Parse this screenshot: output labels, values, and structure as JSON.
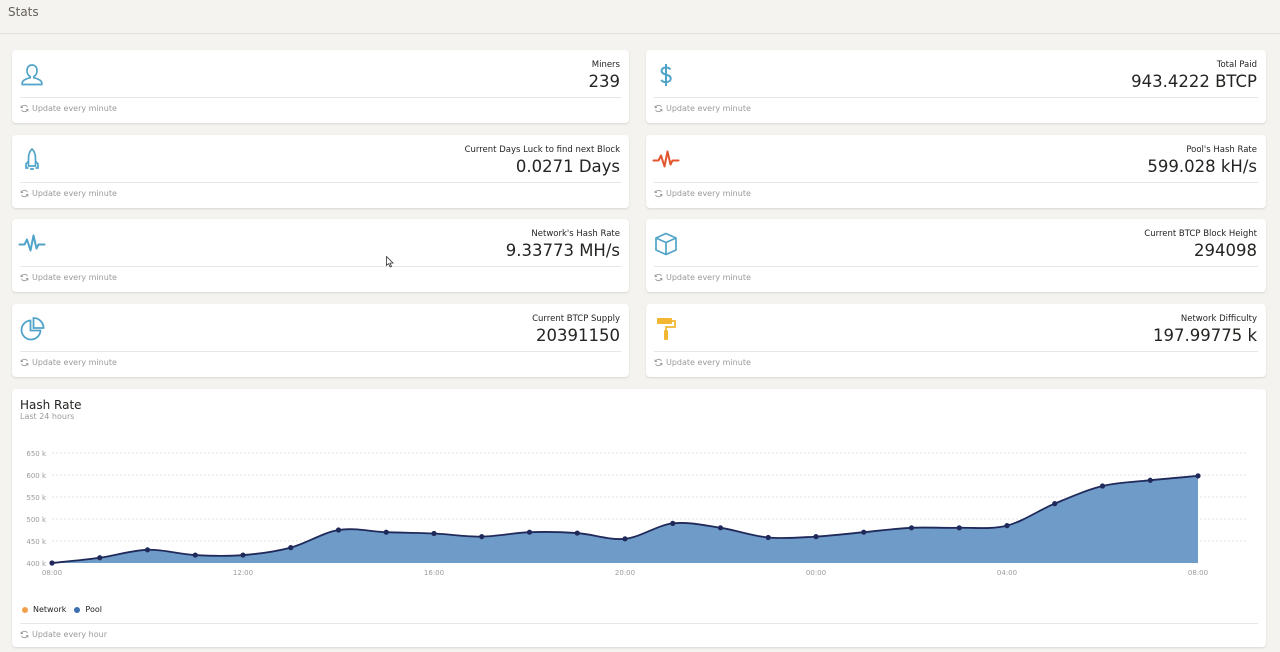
{
  "page": {
    "title": "Stats"
  },
  "stats": [
    {
      "label": "Miners",
      "value": "239",
      "footer": "Update every minute",
      "icon": "user-icon",
      "color": "#51a4c9"
    },
    {
      "label": "Total Paid",
      "value": "943.4222 BTCP",
      "footer": "Update every minute",
      "icon": "dollar-icon",
      "color": "#51a4c9"
    },
    {
      "label": "Current Days Luck to find next Block",
      "value": "0.0271 Days",
      "footer": "Update every minute",
      "icon": "rocket-icon",
      "color": "#51a4c9"
    },
    {
      "label": "Pool's Hash Rate",
      "value": "599.028 kH/s",
      "footer": "Update every minute",
      "icon": "pulse-icon",
      "color": "#e2562d"
    },
    {
      "label": "Network's Hash Rate",
      "value": "9.33773 MH/s",
      "footer": "Update every minute",
      "icon": "pulse-icon",
      "color": "#51a4c9"
    },
    {
      "label": "Current BTCP Block Height",
      "value": "294098",
      "footer": "Update every minute",
      "icon": "box-icon",
      "color": "#51a4c9"
    },
    {
      "label": "Current BTCP Supply",
      "value": "20391150",
      "footer": "Update every minute",
      "icon": "pie-chart-icon",
      "color": "#51a4c9"
    },
    {
      "label": "Network Difficulty",
      "value": "197.99775 k",
      "footer": "Update every minute",
      "icon": "paint-roller-icon",
      "color": "#f2b632"
    }
  ],
  "hashrate": {
    "title": "Hash Rate",
    "subtitle": "Last 24 hours",
    "footer": "Update every hour",
    "legend": [
      {
        "name": "Network",
        "color": "#f0a04b"
      },
      {
        "name": "Pool",
        "color": "#3a6fb0"
      }
    ]
  },
  "chart_data": {
    "type": "area",
    "y_ticks": [
      "400 k",
      "450 k",
      "500 k",
      "550 k",
      "600 k",
      "650 k"
    ],
    "x_ticks": [
      "08:00",
      "12:00",
      "16:00",
      "20:00",
      "00:00",
      "04:00",
      "08:00"
    ],
    "ylim": [
      400,
      650
    ],
    "grid": true,
    "legend_placement": "bottom-left",
    "series": [
      {
        "name": "Pool",
        "color": "#3a6fb0",
        "fill": "#6f9bc9",
        "x_hours": [
          0,
          1,
          2,
          3,
          4,
          5,
          6,
          7,
          8,
          9,
          10,
          11,
          12,
          13,
          14,
          15,
          16,
          17,
          18,
          19,
          20,
          21,
          22,
          23,
          24
        ],
        "values": [
          400,
          412,
          430,
          418,
          418,
          435,
          475,
          470,
          467,
          460,
          470,
          468,
          455,
          490,
          480,
          458,
          460,
          470,
          480,
          480,
          485,
          535,
          575,
          588,
          598
        ]
      }
    ]
  }
}
